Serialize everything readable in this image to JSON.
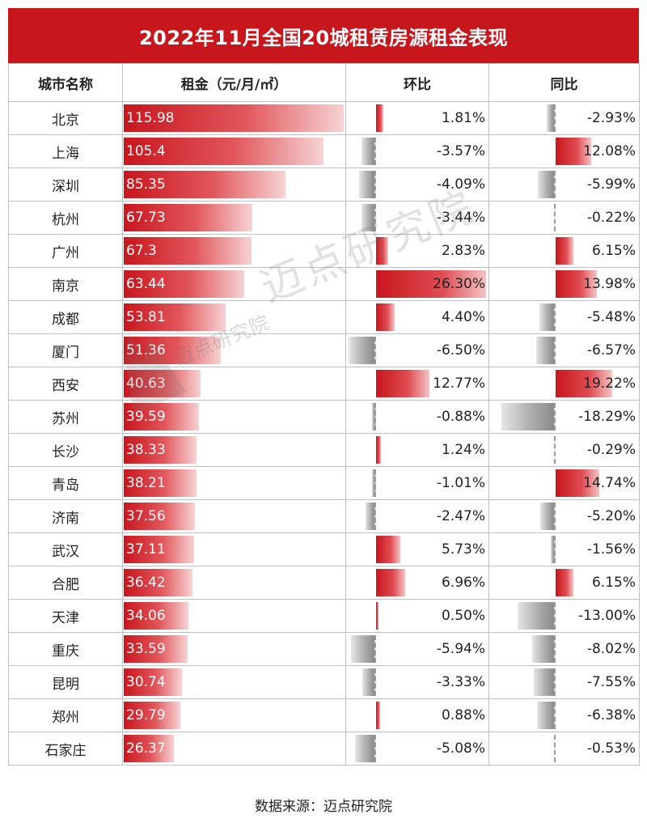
{
  "chart_data": {
    "type": "table",
    "title": "2022年11月全国20城租赁房源租金表现",
    "columns": [
      "城市名称",
      "租金（元/月/㎡）",
      "环比",
      "同比"
    ],
    "rows": [
      {
        "city": "北京",
        "rent": "115.98",
        "mom": "1.81%",
        "yoy": "-2.93%"
      },
      {
        "city": "上海",
        "rent": "105.4",
        "mom": "-3.57%",
        "yoy": "12.08%"
      },
      {
        "city": "深圳",
        "rent": "85.35",
        "mom": "-4.09%",
        "yoy": "-5.99%"
      },
      {
        "city": "杭州",
        "rent": "67.73",
        "mom": "-3.44%",
        "yoy": "-0.22%"
      },
      {
        "city": "广州",
        "rent": "67.3",
        "mom": "2.83%",
        "yoy": "6.15%"
      },
      {
        "city": "南京",
        "rent": "63.44",
        "mom": "26.30%",
        "yoy": "13.98%"
      },
      {
        "city": "成都",
        "rent": "53.81",
        "mom": "4.40%",
        "yoy": "-5.48%"
      },
      {
        "city": "厦门",
        "rent": "51.36",
        "mom": "-6.50%",
        "yoy": "-6.57%"
      },
      {
        "city": "西安",
        "rent": "40.63",
        "mom": "12.77%",
        "yoy": "19.22%"
      },
      {
        "city": "苏州",
        "rent": "39.59",
        "mom": "-0.88%",
        "yoy": "-18.29%"
      },
      {
        "city": "长沙",
        "rent": "38.33",
        "mom": "1.24%",
        "yoy": "-0.29%"
      },
      {
        "city": "青岛",
        "rent": "38.21",
        "mom": "-1.01%",
        "yoy": "14.74%"
      },
      {
        "city": "济南",
        "rent": "37.56",
        "mom": "-2.47%",
        "yoy": "-5.20%"
      },
      {
        "city": "武汉",
        "rent": "37.11",
        "mom": "5.73%",
        "yoy": "-1.56%"
      },
      {
        "city": "合肥",
        "rent": "36.42",
        "mom": "6.96%",
        "yoy": "6.15%"
      },
      {
        "city": "天津",
        "rent": "34.06",
        "mom": "0.50%",
        "yoy": "-13.00%"
      },
      {
        "city": "重庆",
        "rent": "33.59",
        "mom": "-5.94%",
        "yoy": "-8.02%"
      },
      {
        "city": "昆明",
        "rent": "30.74",
        "mom": "-3.33%",
        "yoy": "-7.55%"
      },
      {
        "city": "郑州",
        "rent": "29.79",
        "mom": "0.88%",
        "yoy": "-6.38%"
      },
      {
        "city": "石家庄",
        "rent": "26.37",
        "mom": "-5.08%",
        "yoy": "-0.53%"
      }
    ]
  },
  "watermark": {
    "text": "迈点研究院",
    "small_text": "迈点研究院"
  },
  "source": "数据来源：迈点研究院",
  "colors": {
    "accent": "#c8161d",
    "negative": "#9a9a9a"
  }
}
